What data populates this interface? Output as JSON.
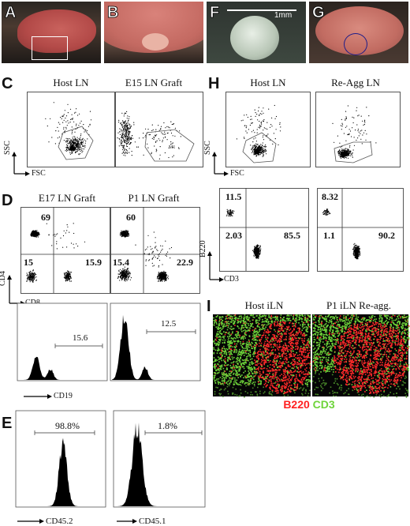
{
  "panels": {
    "A": "A",
    "B": "B",
    "F": "F",
    "G": "G",
    "C": "C",
    "D": "D",
    "E": "E",
    "H": "H",
    "I": "I"
  },
  "panelF": {
    "scale_bar": "1mm"
  },
  "panelC": {
    "titles": [
      "Host LN",
      "E15 LN Graft"
    ],
    "y_axis": "SSC",
    "x_axis": "FSC",
    "gate_label": "M1",
    "tick_max": "1023",
    "tick_min": "0"
  },
  "panelD": {
    "titles": [
      "E17 LN Graft",
      "P1 LN Graft"
    ],
    "y_axis": "CD4",
    "x_axis": "CD8",
    "quadrants": [
      {
        "ul": "69",
        "ll": "15",
        "lr": "15.9"
      },
      {
        "ul": "60",
        "ll": "15.4",
        "lr": "22.9"
      }
    ],
    "hist_x_axis": "CD19",
    "hist_values": [
      "15.6",
      "12.5"
    ],
    "hist_marker": "M1",
    "hist_ymax": [
      "120",
      "120"
    ]
  },
  "panelE": {
    "x_axes": [
      "CD45.2",
      "CD45.1"
    ],
    "values": [
      "98.8%",
      "1.8%"
    ],
    "marker": "M1",
    "ymax": [
      "42",
      "32"
    ]
  },
  "panelH": {
    "titles": [
      "Host LN",
      "Re-Agg LN"
    ],
    "y_axis": "SSC",
    "x_axis": "FSC",
    "quadrants": [
      {
        "ul": "11.5",
        "ll": "2.03",
        "lr": "85.5"
      },
      {
        "ul": "8.32",
        "ll": "1.1",
        "lr": "90.2"
      }
    ],
    "quad_y_axis": "B220",
    "quad_x_axis": "CD3"
  },
  "panelI": {
    "titles": [
      "Host iLN",
      "P1 iLN Re-agg."
    ],
    "legend_b220": "B220",
    "legend_cd3": "CD3",
    "colors": {
      "b220": "#ff2020",
      "cd3": "#6ed43a"
    }
  }
}
